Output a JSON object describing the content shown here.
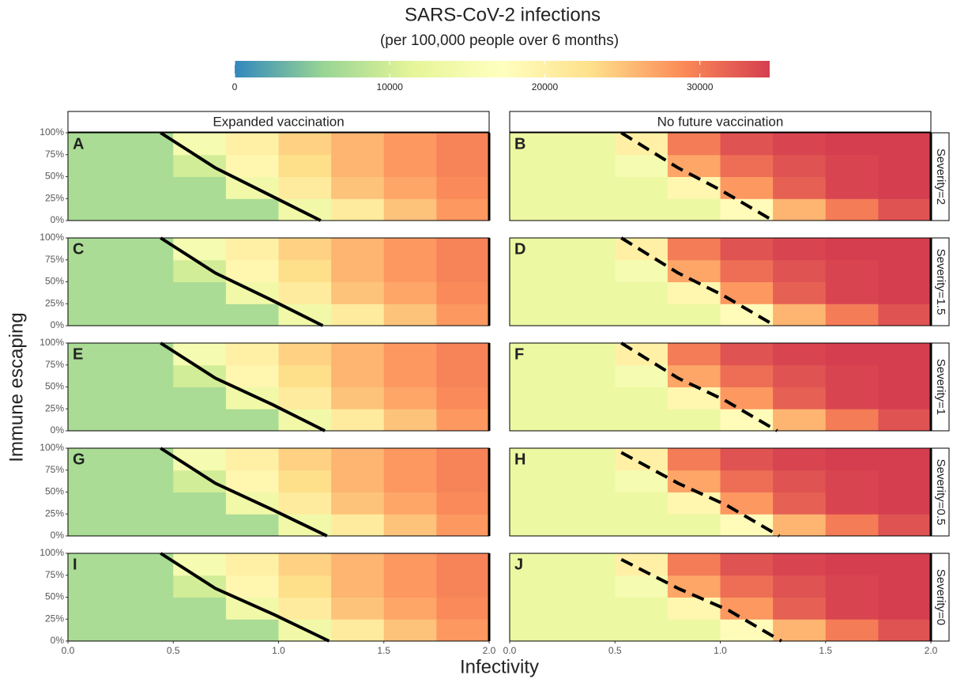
{
  "chart_data": {
    "type": "heatmap",
    "title": "SARS-CoV-2 infections",
    "subtitle": "(per 100,000 people over 6 months)",
    "x_label": "Infectivity",
    "y_label": "Immune escaping",
    "colorbar": {
      "lim": [
        0,
        34500
      ],
      "ticks": [
        0,
        10000,
        20000,
        30000
      ],
      "colors": [
        "#3288bd",
        "#99d594",
        "#e6f598",
        "#ffffbf",
        "#fee08b",
        "#fc8d59",
        "#d53e4f"
      ]
    },
    "columns": [
      "Expanded vaccination",
      "No future vaccination"
    ],
    "rows": [
      "Severity=2",
      "Severity=1.5",
      "Severity=1",
      "Severity=0.5",
      "Severity=0"
    ],
    "xlim": [
      0,
      2
    ],
    "xticks": [
      {
        "value": 0,
        "label": "0.0"
      },
      {
        "value": 0.5,
        "label": "0.5"
      },
      {
        "value": 1,
        "label": "1.0"
      },
      {
        "value": 1.5,
        "label": "1.5"
      },
      {
        "value": 2,
        "label": "2.0"
      }
    ],
    "ylim": [
      0,
      100
    ],
    "yticks": [
      {
        "value": 0,
        "label": "0%"
      },
      {
        "value": 25,
        "label": "25%"
      },
      {
        "value": 50,
        "label": "50%"
      },
      {
        "value": 75,
        "label": "75%"
      },
      {
        "value": 100,
        "label": "100%"
      }
    ],
    "x_centers": [
      0.125,
      0.375,
      0.625,
      0.875,
      1.125,
      1.375,
      1.625,
      1.875
    ],
    "y_centers": [
      12.5,
      37.5,
      62.5,
      87.5
    ],
    "panels": [
      {
        "label": "A",
        "line_style": "solid",
        "values": [
          [
            7000,
            7000,
            7000,
            7000,
            14000,
            21000,
            25000,
            28000
          ],
          [
            7000,
            7000,
            7000,
            14000,
            21000,
            25000,
            27000,
            29000
          ],
          [
            7000,
            7000,
            10000,
            19000,
            23000,
            26000,
            28000,
            29500
          ],
          [
            7000,
            7000,
            15000,
            20000,
            24000,
            26000,
            28000,
            29500
          ]
        ],
        "threshold": {
          "x": [
            0.44,
            0.7,
            0.95,
            1.2
          ],
          "y": [
            100,
            60,
            30,
            0
          ]
        }
      },
      {
        "label": "B",
        "line_style": "dashed",
        "values": [
          [
            13000,
            13000,
            13000,
            13000,
            18000,
            26000,
            30000,
            33000
          ],
          [
            13000,
            13000,
            13000,
            19000,
            28000,
            32000,
            34000,
            35000
          ],
          [
            13000,
            13000,
            15000,
            27000,
            31000,
            33000,
            34000,
            35000
          ],
          [
            13000,
            13000,
            20000,
            30000,
            33000,
            34000,
            35000,
            35000
          ]
        ],
        "threshold": {
          "x": [
            0.53,
            0.8,
            1.0,
            1.25
          ],
          "y": [
            100,
            60,
            35,
            0
          ]
        }
      },
      {
        "label": "C",
        "line_style": "solid",
        "values": [
          [
            7000,
            7000,
            7000,
            7000,
            14000,
            21000,
            25000,
            28000
          ],
          [
            7000,
            7000,
            7000,
            14000,
            21000,
            25000,
            27000,
            29000
          ],
          [
            7000,
            7000,
            10000,
            19000,
            23000,
            26000,
            28000,
            29500
          ],
          [
            7000,
            7000,
            15000,
            20000,
            24000,
            26000,
            28000,
            29500
          ]
        ],
        "threshold": {
          "x": [
            0.44,
            0.7,
            0.96,
            1.21
          ],
          "y": [
            100,
            60,
            30,
            0
          ]
        }
      },
      {
        "label": "D",
        "line_style": "dashed",
        "values": [
          [
            13000,
            13000,
            13000,
            13000,
            18000,
            26000,
            30000,
            33000
          ],
          [
            13000,
            13000,
            13000,
            19000,
            28000,
            32000,
            34000,
            35000
          ],
          [
            13000,
            13000,
            15000,
            27000,
            31000,
            33000,
            34000,
            35000
          ],
          [
            13000,
            13000,
            20000,
            30000,
            33000,
            34000,
            35000,
            35000
          ]
        ],
        "threshold": {
          "x": [
            0.53,
            0.8,
            1.01,
            1.26
          ],
          "y": [
            100,
            60,
            35,
            0
          ]
        }
      },
      {
        "label": "E",
        "line_style": "solid",
        "values": [
          [
            7000,
            7000,
            7000,
            7000,
            14000,
            21000,
            25000,
            28000
          ],
          [
            7000,
            7000,
            7000,
            14000,
            21000,
            25000,
            27000,
            29000
          ],
          [
            7000,
            7000,
            10000,
            19000,
            23000,
            26000,
            28000,
            29500
          ],
          [
            7000,
            7000,
            15000,
            20000,
            24000,
            26000,
            28000,
            29500
          ]
        ],
        "threshold": {
          "x": [
            0.44,
            0.7,
            0.97,
            1.22
          ],
          "y": [
            100,
            60,
            30,
            0
          ]
        }
      },
      {
        "label": "F",
        "line_style": "dashed",
        "values": [
          [
            13000,
            13000,
            13000,
            13000,
            18000,
            26000,
            30000,
            33000
          ],
          [
            13000,
            13000,
            13000,
            19000,
            28000,
            32000,
            34000,
            35000
          ],
          [
            13000,
            13000,
            15000,
            27000,
            31000,
            33000,
            34000,
            35000
          ],
          [
            13000,
            13000,
            20000,
            30000,
            33000,
            34000,
            35000,
            35000
          ]
        ],
        "threshold": {
          "x": [
            0.53,
            0.8,
            1.02,
            1.27
          ],
          "y": [
            100,
            60,
            35,
            0
          ]
        }
      },
      {
        "label": "G",
        "line_style": "solid",
        "values": [
          [
            7000,
            7000,
            7000,
            7000,
            14000,
            21000,
            25000,
            28000
          ],
          [
            7000,
            7000,
            7000,
            14000,
            21000,
            25000,
            27000,
            29000
          ],
          [
            7000,
            7000,
            10000,
            19000,
            23000,
            26000,
            28000,
            29500
          ],
          [
            7000,
            7000,
            15000,
            20000,
            24000,
            26000,
            28000,
            29500
          ]
        ],
        "threshold": {
          "x": [
            0.44,
            0.7,
            0.97,
            1.23
          ],
          "y": [
            100,
            60,
            30,
            0
          ]
        }
      },
      {
        "label": "H",
        "line_style": "dashed",
        "values": [
          [
            13000,
            13000,
            13000,
            13000,
            18000,
            26000,
            30000,
            33000
          ],
          [
            13000,
            13000,
            13000,
            19000,
            28000,
            32000,
            34000,
            35000
          ],
          [
            13000,
            13000,
            15000,
            27000,
            31000,
            33000,
            34000,
            35000
          ],
          [
            13000,
            13000,
            20000,
            30000,
            33000,
            34000,
            35000,
            35000
          ]
        ],
        "threshold": {
          "x": [
            0.53,
            0.8,
            1.03,
            1.28
          ],
          "y": [
            95,
            60,
            35,
            0
          ]
        }
      },
      {
        "label": "I",
        "line_style": "solid",
        "values": [
          [
            7000,
            7000,
            7000,
            7000,
            14000,
            21000,
            25000,
            28000
          ],
          [
            7000,
            7000,
            7000,
            14000,
            21000,
            25000,
            27000,
            29000
          ],
          [
            7000,
            7000,
            10000,
            19000,
            23000,
            26000,
            28000,
            29500
          ],
          [
            7000,
            7000,
            15000,
            20000,
            24000,
            26000,
            28000,
            29500
          ]
        ],
        "threshold": {
          "x": [
            0.44,
            0.7,
            0.98,
            1.24
          ],
          "y": [
            100,
            60,
            30,
            0
          ]
        }
      },
      {
        "label": "J",
        "line_style": "dashed",
        "values": [
          [
            13000,
            13000,
            13000,
            13000,
            18000,
            26000,
            30000,
            33000
          ],
          [
            13000,
            13000,
            13000,
            19000,
            28000,
            32000,
            34000,
            35000
          ],
          [
            13000,
            13000,
            15000,
            27000,
            31000,
            33000,
            34000,
            35000
          ],
          [
            13000,
            13000,
            20000,
            30000,
            33000,
            34000,
            35000,
            35000
          ]
        ],
        "threshold": {
          "x": [
            0.53,
            0.8,
            1.04,
            1.29
          ],
          "y": [
            93,
            60,
            35,
            0
          ]
        }
      }
    ]
  }
}
